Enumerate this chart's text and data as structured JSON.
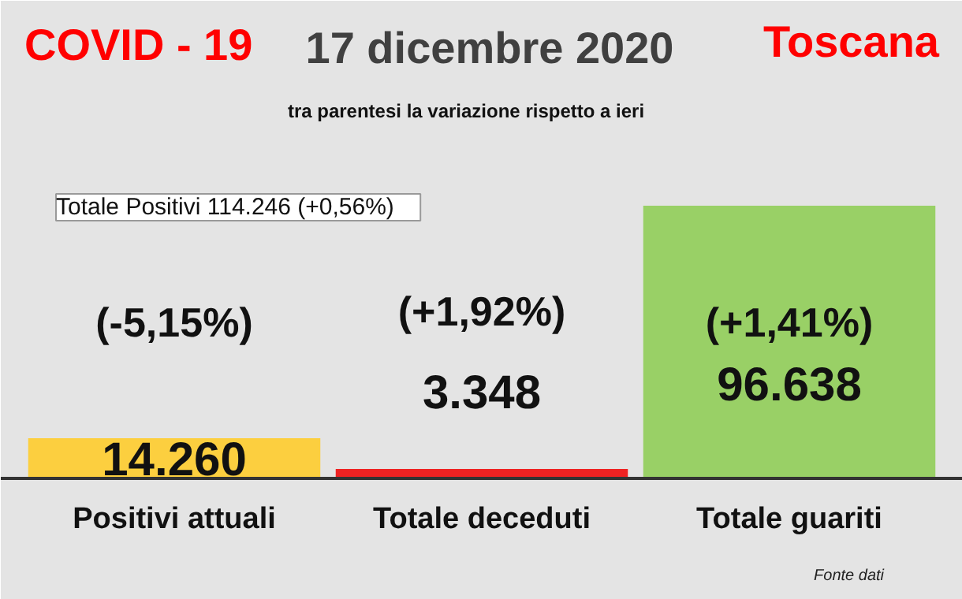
{
  "chart_data": {
    "type": "bar",
    "title": "17 dicembre 2020",
    "subtitle": "tra parentesi la variazione rispetto a ieri",
    "categories": [
      "Positivi attuali",
      "Totale deceduti",
      "Totale guariti"
    ],
    "values": [
      14260,
      3348,
      96638
    ],
    "colors": [
      "#fccf3f",
      "#ee2222",
      "#99d066"
    ],
    "value_labels": [
      "14.260",
      "3.348",
      "96.638"
    ],
    "annotations": [
      "COVID - 19",
      "Toscana",
      "Totale Positivi     114.246 (+0,56%)",
      "(-5,15%)",
      "(+1,92%)",
      "(+1,41%)",
      "Fonte dati"
    ]
  }
}
